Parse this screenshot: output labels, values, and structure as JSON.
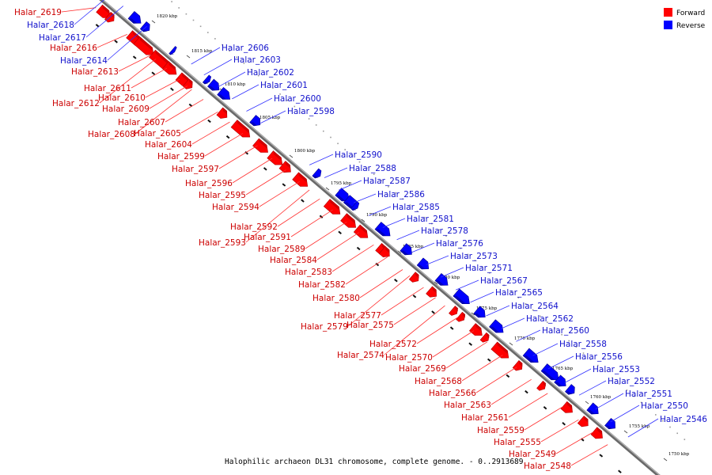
{
  "legend": [
    {
      "label": "Forward",
      "color": "#ff0000"
    },
    {
      "label": "Reverse",
      "color": "#0000ff"
    }
  ],
  "caption": "Halophilic archaeon DL31 chromosome, complete genome. - 0..2913689",
  "position_ticks": [
    "1820 kbp",
    "1815 kbp",
    "1810 kbp",
    "1805 kbp",
    "1800 kbp",
    "1795 kbp",
    "1790 kbp",
    "1785 kbp",
    "1780 kbp",
    "1775 kbp",
    "1770 kbp",
    "1765 kbp",
    "1760 kbp",
    "1755 kbp",
    "1750 kbp"
  ],
  "forward_genes": [
    "Halar_2619",
    "Halar_2616",
    "Halar_2613",
    "Halar_2611",
    "Halar_2610",
    "Halar_2612",
    "Halar_2609",
    "Halar_2607",
    "Halar_2608",
    "Halar_2605",
    "Halar_2604",
    "Halar_2599",
    "Halar_2597",
    "Halar_2596",
    "Halar_2595",
    "Halar_2594",
    "Halar_2592",
    "Halar_2591",
    "Halar_2593",
    "Halar_2589",
    "Halar_2584",
    "Halar_2583",
    "Halar_2582",
    "Halar_2580",
    "Halar_2577",
    "Halar_2575",
    "Halar_2579",
    "Halar_2572",
    "Halar_2574",
    "Halar_2570",
    "Halar_2569",
    "Halar_2568",
    "Halar_2566",
    "Halar_2563",
    "Halar_2561",
    "Halar_2559",
    "Halar_2555",
    "Halar_2549",
    "Halar_2548"
  ],
  "reverse_genes": [
    "Halar_2618",
    "Halar_2617",
    "Halar_2614",
    "Halar_2606",
    "Halar_2603",
    "Halar_2602",
    "Halar_2601",
    "Halar_2600",
    "Halar_2598",
    "Halar_2590",
    "Halar_2588",
    "Halar_2587",
    "Halar_2586",
    "Halar_2585",
    "Halar_2581",
    "Halar_2578",
    "Halar_2576",
    "Halar_2573",
    "Halar_2571",
    "Halar_2567",
    "Halar_2565",
    "Halar_2564",
    "Halar_2562",
    "Halar_2560",
    "Halar_2558",
    "Halar_2556",
    "Halar_2553",
    "Halar_2552",
    "Halar_2551",
    "Halar_2550",
    "Halar_2546"
  ]
}
